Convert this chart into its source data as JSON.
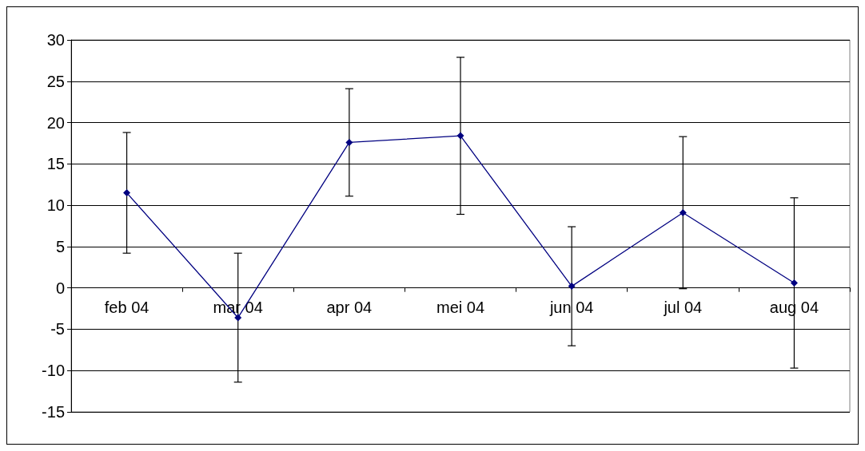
{
  "chart_data": {
    "type": "line",
    "categories": [
      "feb 04",
      "mar 04",
      "apr 04",
      "mei 04",
      "jun 04",
      "jul 04",
      "aug 04"
    ],
    "series": [
      {
        "color": "#000080",
        "values": [
          11.5,
          -3.6,
          17.6,
          18.4,
          0.2,
          9.1,
          0.6
        ],
        "errors": [
          7.3,
          7.8,
          6.5,
          9.5,
          7.2,
          9.2,
          10.3
        ]
      }
    ],
    "ylim": [
      -15,
      30
    ],
    "yticks": [
      -15,
      -10,
      -5,
      0,
      5,
      10,
      15,
      20,
      25,
      30
    ],
    "grid": "y",
    "marker": "diamond",
    "line_style": "solid"
  }
}
